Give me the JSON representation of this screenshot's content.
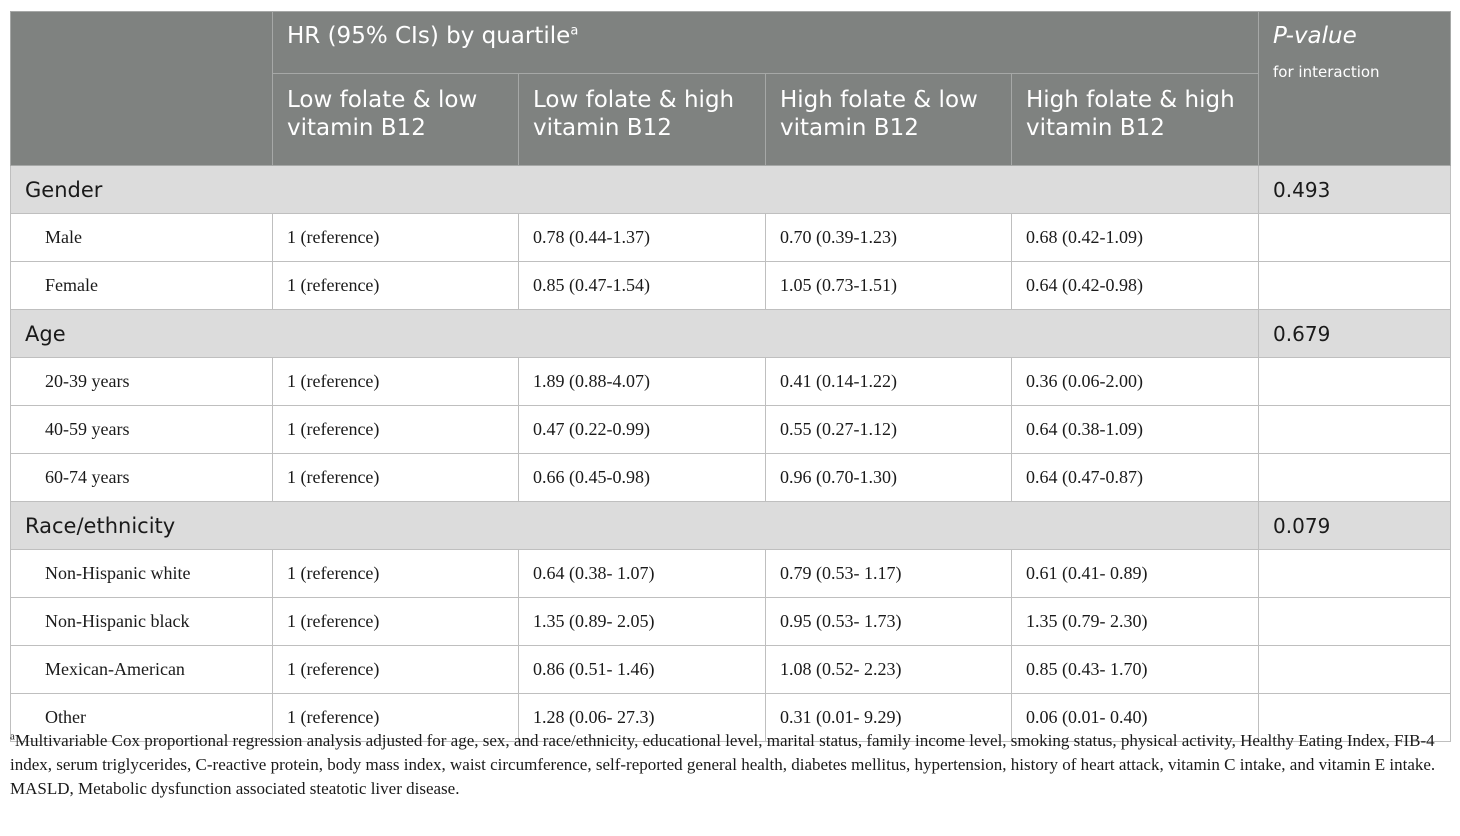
{
  "header": {
    "group_title": "HR (95% CIs) by quartile",
    "group_title_sup": "a",
    "pvalue_title": "P-value",
    "pvalue_subtitle": "for interaction",
    "columns": [
      "Low folate & low vitamin B12",
      "Low folate & high vitamin B12",
      "High folate & low vitamin B12",
      "High folate & high vitamin B12"
    ]
  },
  "groups": [
    {
      "label": "Gender",
      "pvalue": "0.493",
      "rows": [
        {
          "label": "Male",
          "values": [
            "1 (reference)",
            "0.78 (0.44-1.37)",
            "0.70 (0.39-1.23)",
            "0.68 (0.42-1.09)"
          ]
        },
        {
          "label": "Female",
          "values": [
            "1 (reference)",
            "0.85 (0.47-1.54)",
            "1.05 (0.73-1.51)",
            "0.64 (0.42-0.98)"
          ]
        }
      ]
    },
    {
      "label": "Age",
      "pvalue": "0.679",
      "rows": [
        {
          "label": "20-39 years",
          "values": [
            "1 (reference)",
            "1.89 (0.88-4.07)",
            "0.41 (0.14-1.22)",
            "0.36 (0.06-2.00)"
          ]
        },
        {
          "label": "40-59 years",
          "values": [
            "1 (reference)",
            "0.47 (0.22-0.99)",
            "0.55 (0.27-1.12)",
            "0.64 (0.38-1.09)"
          ]
        },
        {
          "label": "60-74 years",
          "values": [
            "1 (reference)",
            "0.66 (0.45-0.98)",
            "0.96 (0.70-1.30)",
            "0.64 (0.47-0.87)"
          ]
        }
      ]
    },
    {
      "label": "Race/ethnicity",
      "pvalue": "0.079",
      "rows": [
        {
          "label": "Non-Hispanic white",
          "values": [
            "1 (reference)",
            "0.64 (0.38- 1.07)",
            "0.79 (0.53- 1.17)",
            "0.61 (0.41- 0.89)"
          ]
        },
        {
          "label": "Non-Hispanic black",
          "values": [
            "1 (reference)",
            "1.35 (0.89- 2.05)",
            "0.95 (0.53- 1.73)",
            "1.35 (0.79- 2.30)"
          ]
        },
        {
          "label": "Mexican-American",
          "values": [
            "1 (reference)",
            "0.86 (0.51- 1.46)",
            "1.08 (0.52- 2.23)",
            "0.85 (0.43- 1.70)"
          ]
        },
        {
          "label": "Other",
          "values": [
            "1 (reference)",
            "1.28 (0.06- 27.3)",
            "0.31 (0.01- 9.29)",
            "0.06 (0.01- 0.40)"
          ]
        }
      ]
    }
  ],
  "footnotes": {
    "note_a_marker": "a",
    "note_a": "Multivariable Cox proportional regression analysis adjusted for age, sex, and race/ethnicity, educational level, marital status, family income level, smoking status, physical activity, Healthy Eating Index, FIB-4 index, serum triglycerides, C-reactive protein, body mass index, waist circumference, self-reported general health, diabetes mellitus, hypertension, history of heart attack, vitamin C intake, and vitamin E intake.",
    "abbreviation": "MASLD, Metabolic dysfunction associated steatotic liver disease."
  },
  "colors": {
    "header_bg": "#7f8280",
    "group_bg": "#dcdcdc",
    "border": "#bfbfbf"
  }
}
